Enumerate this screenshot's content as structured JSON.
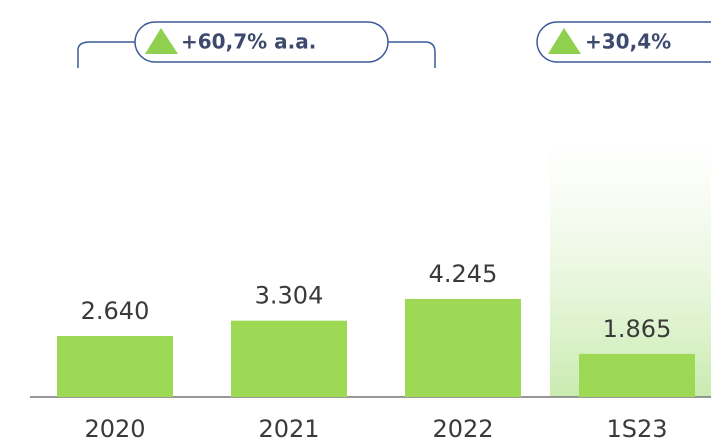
{
  "chart_data": {
    "type": "bar",
    "categories": [
      "2020",
      "2021",
      "2022",
      "1S23"
    ],
    "values": [
      2640,
      3304,
      4245,
      1865
    ],
    "value_labels": [
      "2.640",
      "3.304",
      "4.245",
      "1.865"
    ],
    "color": "#9dd955",
    "ylim": [
      0,
      10000
    ],
    "annotations": [
      "+60,7% a.a.",
      "+30,4%"
    ]
  }
}
